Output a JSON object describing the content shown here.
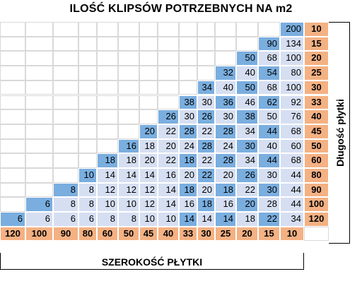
{
  "title": "ILOŚĆ KLIPSÓW POTRZEBNYCH NA m2",
  "x_axis_label": "SZEROKOŚĆ PŁYTKI",
  "y_axis_label": "Długość płytki",
  "colors": {
    "blue": "#7aaedf",
    "light": "#d6dff2",
    "orange": "#f4b183"
  },
  "widths": [
    "120",
    "100",
    "90",
    "80",
    "60",
    "50",
    "45",
    "40",
    "33",
    "30",
    "25",
    "20",
    "15",
    "10"
  ],
  "lengths": [
    "10",
    "15",
    "20",
    "25",
    "30",
    "33",
    "40",
    "45",
    "50",
    "60",
    "80",
    "90",
    "100",
    "120"
  ],
  "rows": [
    [
      "",
      "",
      "",
      "",
      "",
      "",
      "",
      "",
      "",
      "",
      "",
      "",
      "",
      "200"
    ],
    [
      "",
      "",
      "",
      "",
      "",
      "",
      "",
      "",
      "",
      "",
      "",
      "",
      "90",
      "134"
    ],
    [
      "",
      "",
      "",
      "",
      "",
      "",
      "",
      "",
      "",
      "",
      "",
      "50",
      "68",
      "100"
    ],
    [
      "",
      "",
      "",
      "",
      "",
      "",
      "",
      "",
      "",
      "",
      "32",
      "40",
      "54",
      "80"
    ],
    [
      "",
      "",
      "",
      "",
      "",
      "",
      "",
      "",
      "",
      "34",
      "40",
      "50",
      "68",
      "100"
    ],
    [
      "",
      "",
      "",
      "",
      "",
      "",
      "",
      "",
      "38",
      "30",
      "36",
      "46",
      "62",
      "92"
    ],
    [
      "",
      "",
      "",
      "",
      "",
      "",
      "",
      "26",
      "30",
      "26",
      "30",
      "38",
      "50",
      "76"
    ],
    [
      "",
      "",
      "",
      "",
      "",
      "",
      "20",
      "22",
      "28",
      "22",
      "28",
      "34",
      "44",
      "68"
    ],
    [
      "",
      "",
      "",
      "",
      "",
      "16",
      "18",
      "20",
      "24",
      "28",
      "24",
      "30",
      "40",
      "60"
    ],
    [
      "",
      "",
      "",
      "",
      "18",
      "18",
      "20",
      "22",
      "18",
      "22",
      "28",
      "34",
      "44",
      "68"
    ],
    [
      "",
      "",
      "",
      "10",
      "14",
      "14",
      "14",
      "16",
      "20",
      "22",
      "20",
      "26",
      "30",
      "44"
    ],
    [
      "",
      "",
      "8",
      "8",
      "12",
      "12",
      "12",
      "14",
      "18",
      "20",
      "18",
      "22",
      "30",
      "44"
    ],
    [
      "",
      "6",
      "8",
      "8",
      "10",
      "10",
      "12",
      "14",
      "16",
      "18",
      "16",
      "20",
      "28",
      "44"
    ],
    [
      "6",
      "6",
      "6",
      "6",
      "8",
      "8",
      "10",
      "10",
      "14",
      "14",
      "14",
      "18",
      "22",
      "34"
    ]
  ]
}
